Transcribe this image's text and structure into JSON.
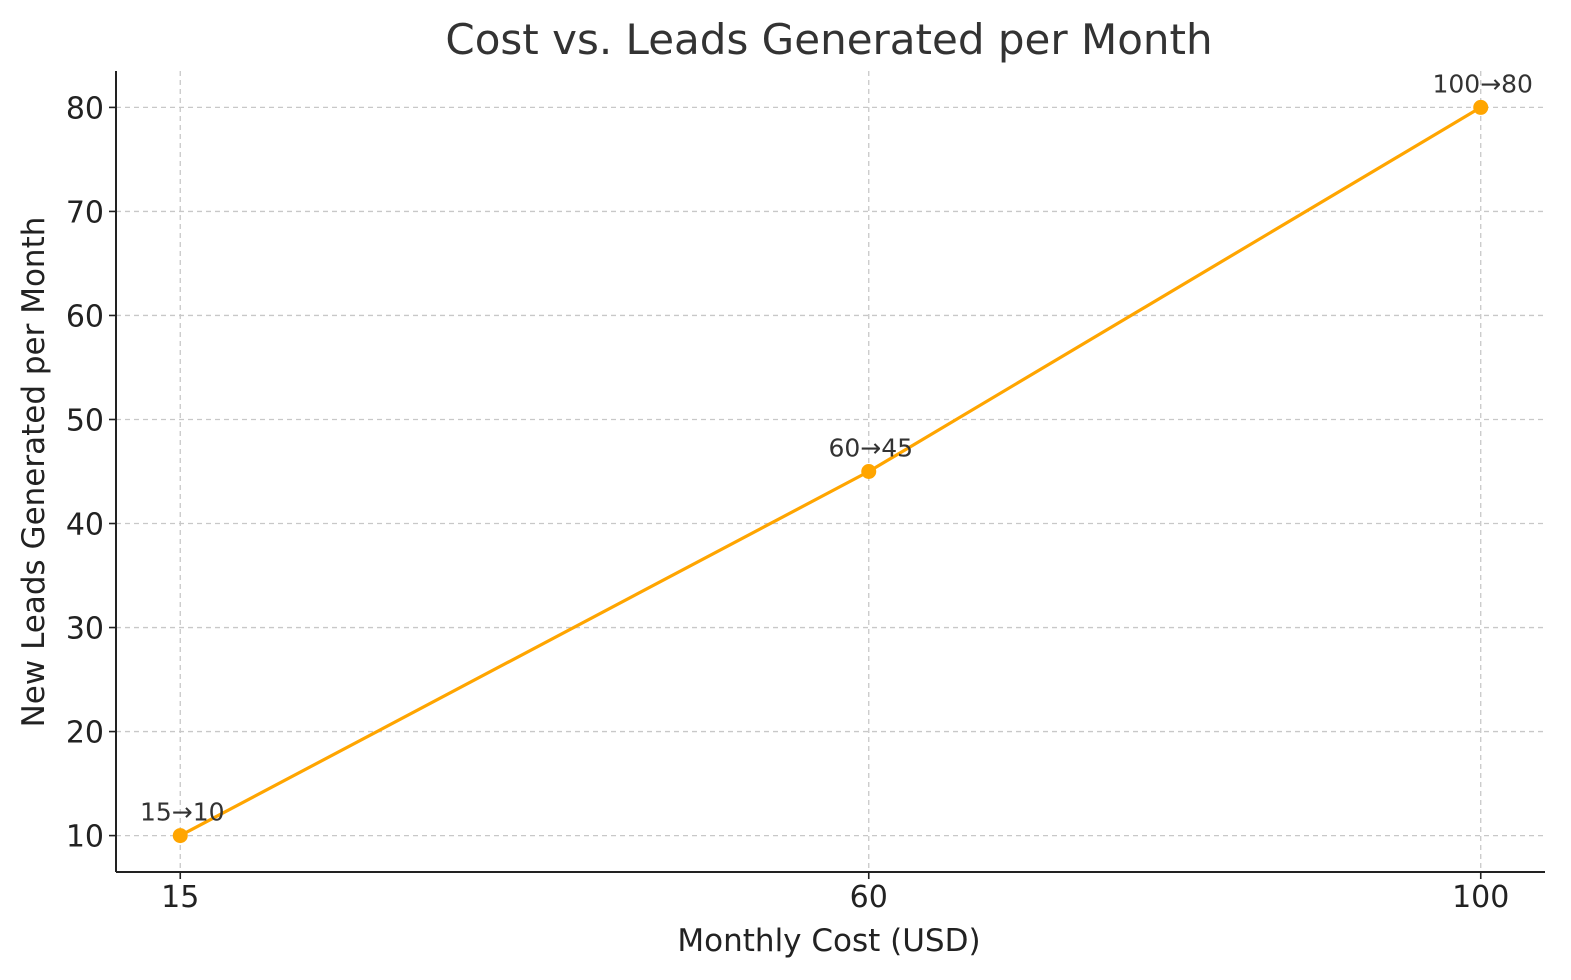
{
  "chart_data": {
    "type": "line",
    "title": "Cost vs. Leads Generated per Month",
    "xlabel": "Monthly Cost (USD)",
    "ylabel": "New Leads Generated per Month",
    "x": [
      15,
      60,
      100
    ],
    "series": [
      {
        "values": [
          10,
          45,
          80
        ],
        "color": "#FFA500",
        "marker": "circle",
        "data_labels": [
          "15→10",
          "60→45",
          "100→80"
        ]
      }
    ],
    "xticks": [
      15,
      60,
      100
    ],
    "yticks": [
      10,
      20,
      30,
      40,
      50,
      60,
      70,
      80
    ],
    "xlim": [
      10.8,
      104.2
    ],
    "ylim": [
      6.5,
      83.5
    ],
    "grid": true,
    "grid_style": "dashed",
    "legend": "none"
  }
}
